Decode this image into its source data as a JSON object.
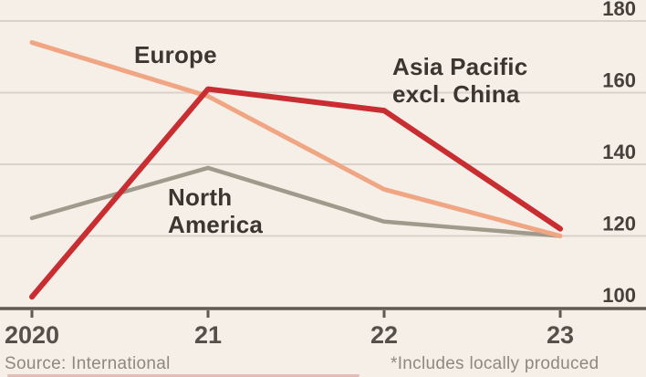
{
  "chart_data": {
    "type": "line",
    "title": "",
    "xlabel": "",
    "ylabel": "",
    "categories": [
      "2020",
      "21",
      "22",
      "23"
    ],
    "series": [
      {
        "name": "North America",
        "color": "#a09a8c",
        "width": 4.5,
        "values": [
          125,
          139,
          124,
          120
        ]
      },
      {
        "name": "Europe",
        "color": "#f0a583",
        "width": 5,
        "values": [
          174,
          159,
          133,
          120
        ]
      },
      {
        "name": "Asia Pacific excl. China",
        "color": "#c82d32",
        "width": 6,
        "values": [
          103,
          161,
          155,
          122
        ]
      }
    ],
    "ylim": [
      100,
      180
    ],
    "yticks": [
      100,
      120,
      140,
      160,
      180
    ],
    "grid": "horizontal",
    "legend": "inline-annotations",
    "colors": {
      "background": "#f6efe8",
      "gridline": "#d9d2ca",
      "axis": "#605a53",
      "y_tick_label": "#45403a",
      "x_tick_label": "#55504a",
      "annotation_text": "#3b362f"
    }
  },
  "labels": {
    "europe": "Europe",
    "asia_pacific": [
      "Asia Pacific",
      "excl. China"
    ],
    "north_america": [
      "North",
      "America"
    ]
  },
  "footer": {
    "source": "Source: International",
    "footnote": "*Includes locally produced"
  }
}
